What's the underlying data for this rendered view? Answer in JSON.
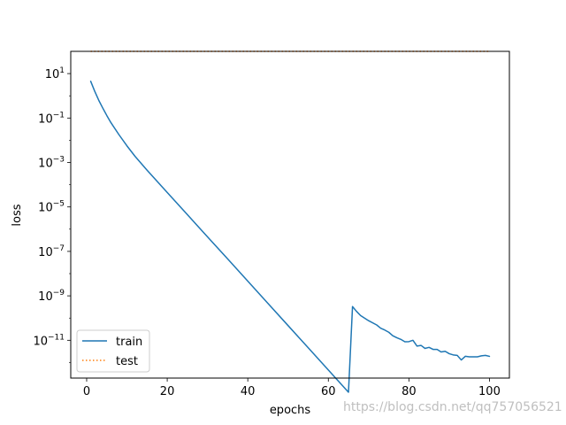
{
  "chart_data": {
    "type": "line",
    "xlabel": "epochs",
    "ylabel": "loss",
    "yscale": "log",
    "xlim": [
      -3.95,
      104.95
    ],
    "ylim_log10": [
      -12.7,
      2.0
    ],
    "x_ticks": [
      0,
      20,
      40,
      60,
      80,
      100
    ],
    "x_tick_labels": [
      "0",
      "20",
      "40",
      "60",
      "80",
      "100"
    ],
    "y_ticks_log10": [
      1,
      -1,
      -3,
      -5,
      -7,
      -9,
      -11
    ],
    "y_tick_labels": [
      {
        "base": "10",
        "exp": "1"
      },
      {
        "base": "10",
        "exp": "−1"
      },
      {
        "base": "10",
        "exp": "−3"
      },
      {
        "base": "10",
        "exp": "−5"
      },
      {
        "base": "10",
        "exp": "−7"
      },
      {
        "base": "10",
        "exp": "−9"
      },
      {
        "base": "10",
        "exp": "−11"
      }
    ],
    "grid": false,
    "legend_placement": "lower-left",
    "series": [
      {
        "name": "train",
        "color": "#1f77b4",
        "style": "solid",
        "x": [
          1,
          2,
          3,
          4,
          5,
          6,
          8,
          10,
          12,
          15,
          20,
          25,
          30,
          35,
          40,
          45,
          50,
          55,
          60,
          65,
          66,
          67,
          68,
          70,
          72,
          73,
          74,
          75,
          76,
          77,
          78,
          79,
          80,
          81,
          82,
          83,
          84,
          85,
          86,
          87,
          88,
          89,
          90,
          91,
          92,
          93,
          94,
          95,
          96,
          97,
          98,
          99,
          100
        ],
        "y": [
          4.5,
          1.6,
          0.63,
          0.28,
          0.13,
          0.063,
          0.018,
          0.0056,
          0.0019,
          0.00045,
          4.5e-05,
          4.5e-06,
          4.5e-07,
          4.6e-08,
          4.6e-09,
          4.6e-10,
          4.6e-11,
          4.6e-12,
          4.6e-13,
          4.6e-14,
          3.3e-10,
          2e-10,
          1.3e-10,
          7.6e-11,
          4.9e-11,
          3.5e-11,
          2.9e-11,
          2.3e-11,
          1.6e-11,
          1.3e-11,
          1.1e-11,
          8.6e-12,
          8.7e-12,
          1e-11,
          5.5e-12,
          5.9e-12,
          4.3e-12,
          4.8e-12,
          3.9e-12,
          3.9e-12,
          3e-12,
          3.2e-12,
          2.5e-12,
          2.2e-12,
          2.1e-12,
          1.3e-12,
          1.9e-12,
          1.8e-12,
          1.8e-12,
          1.8e-12,
          2e-12,
          2.1e-12,
          1.9e-12
        ]
      },
      {
        "name": "test",
        "color": "#ff7f0e",
        "style": "dotted",
        "x": [
          1,
          100
        ],
        "y": [
          100,
          100
        ]
      }
    ]
  },
  "watermark": "https://blog.csdn.net/qq757056521"
}
